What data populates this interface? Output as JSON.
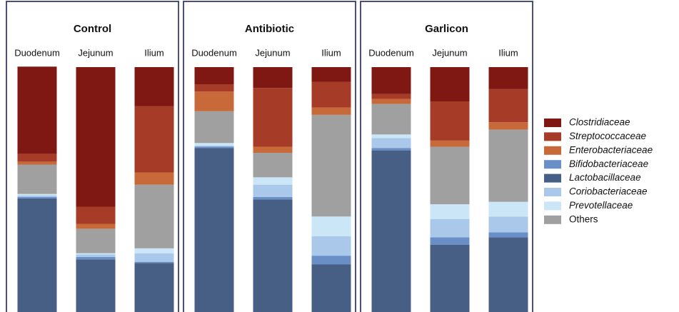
{
  "chart_data": {
    "type": "bar",
    "stacked": true,
    "legend": "right",
    "ylim": [
      0,
      100
    ],
    "stack_order": [
      4,
      3,
      5,
      6,
      7,
      2,
      1,
      0
    ],
    "panels": [
      {
        "title": "Control",
        "categories": [
          "Duodenum",
          "Jejunum",
          "Ilium"
        ]
      },
      {
        "title": "Antibiotic",
        "categories": [
          "Duodenum",
          "Jejunum",
          "Ilium"
        ]
      },
      {
        "title": "Garlicon",
        "categories": [
          "Duodenum",
          "Jejunum",
          "Ilium"
        ]
      }
    ],
    "series": [
      {
        "name": "Clostridiaceae",
        "color": "#7f1712",
        "italic": true,
        "values": [
          [
            35.6,
            57,
            16
          ],
          [
            7,
            8.5,
            6
          ],
          [
            11,
            14,
            9
          ]
        ]
      },
      {
        "name": "Streptococcaceae",
        "color": "#a63b28",
        "italic": true,
        "values": [
          [
            3.2,
            7,
            27
          ],
          [
            3,
            24,
            10.5
          ],
          [
            2,
            16,
            13.5
          ]
        ]
      },
      {
        "name": "Enterobacteriaceae",
        "color": "#c8693a",
        "italic": true,
        "values": [
          [
            1.2,
            2,
            5
          ],
          [
            8,
            2.5,
            3
          ],
          [
            2,
            2.5,
            3
          ]
        ]
      },
      {
        "name": "Bifidobacteriaceae",
        "color": "#6a8fc7",
        "italic": true,
        "values": [
          [
            0.6,
            1,
            0.5
          ],
          [
            0.5,
            1,
            3.5
          ],
          [
            1,
            3,
            2
          ]
        ]
      },
      {
        "name": "Lactobacillaceae",
        "color": "#475e85",
        "italic": true,
        "values": [
          [
            46.4,
            21.5,
            20
          ],
          [
            67,
            46,
            19.5
          ],
          [
            66,
            27.5,
            30.5
          ]
        ]
      },
      {
        "name": "Coriobacteriaceae",
        "color": "#aac8ea",
        "italic": true,
        "values": [
          [
            0.6,
            1,
            3.5
          ],
          [
            0.5,
            5,
            8
          ],
          [
            4,
            7.5,
            6.5
          ]
        ]
      },
      {
        "name": "Prevotellaceae",
        "color": "#cbe6f7",
        "italic": true,
        "values": [
          [
            0.6,
            0.5,
            2
          ],
          [
            1,
            3,
            8
          ],
          [
            1.5,
            6,
            6
          ]
        ]
      },
      {
        "name": "Others",
        "color": "#a0a0a0",
        "italic": false,
        "values": [
          [
            12,
            10,
            26
          ],
          [
            13,
            10,
            41.5
          ],
          [
            12.5,
            23.5,
            29.5
          ]
        ]
      }
    ]
  }
}
